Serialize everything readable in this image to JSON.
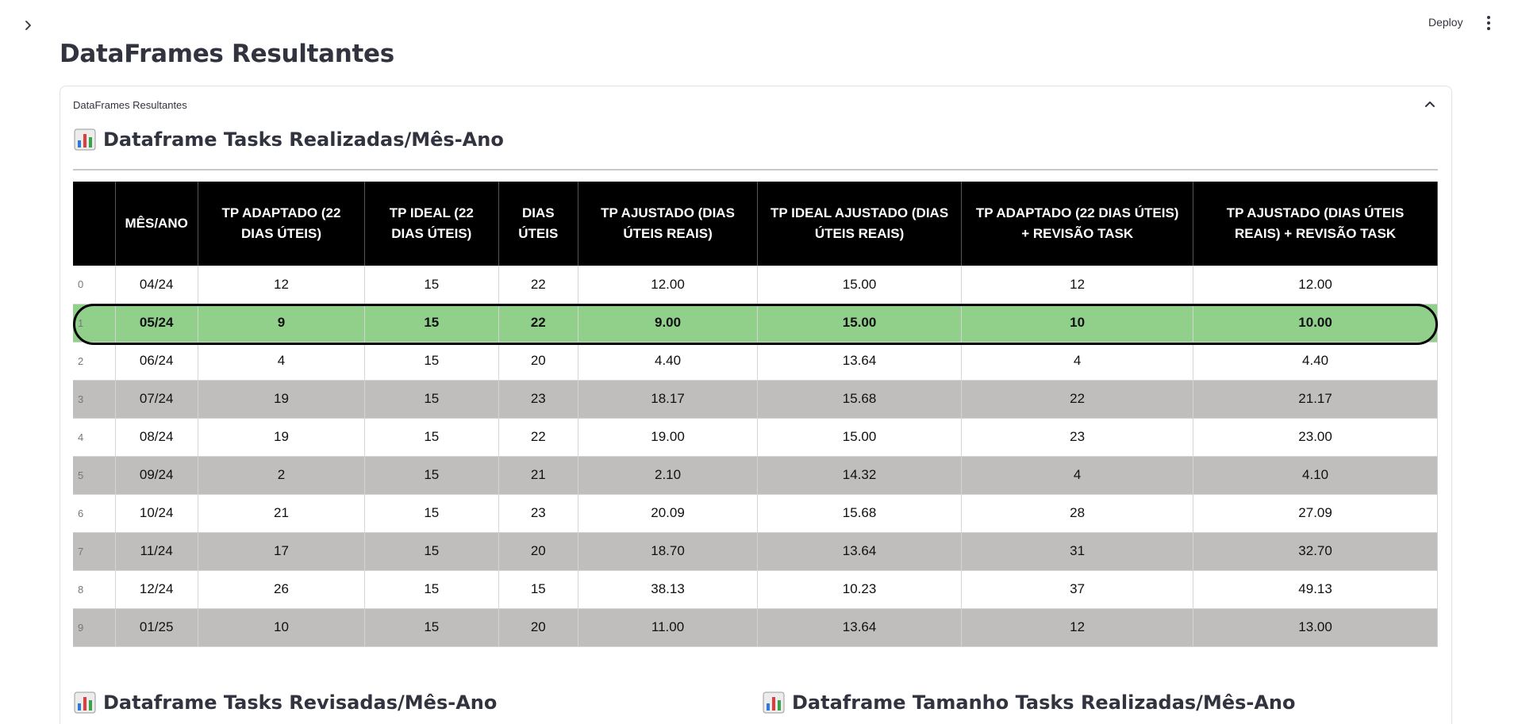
{
  "header": {
    "deploy_label": "Deploy"
  },
  "page": {
    "title": "DataFrames Resultantes"
  },
  "expander": {
    "label": "DataFrames Resultantes"
  },
  "sections": {
    "main_title": "Dataframe Tasks Realizadas/Mês-Ano",
    "left_title": "Dataframe Tasks Revisadas/Mês-Ano",
    "right_title": "Dataframe Tamanho Tasks Realizadas/Mês-Ano"
  },
  "table": {
    "columns": [
      "",
      "MÊS/ANO",
      "TP ADAPTADO (22 DIAS ÚTEIS)",
      "TP IDEAL (22 DIAS ÚTEIS)",
      "DIAS ÚTEIS",
      "TP AJUSTADO (DIAS ÚTEIS REAIS)",
      "TP IDEAL AJUSTADO (DIAS ÚTEIS REAIS)",
      "TP ADAPTADO (22 DIAS ÚTEIS) + REVISÃO TASK",
      "TP AJUSTADO (DIAS ÚTEIS REAIS) + REVISÃO TASK"
    ],
    "rows": [
      [
        "0",
        "04/24",
        "12",
        "15",
        "22",
        "12.00",
        "15.00",
        "12",
        "12.00"
      ],
      [
        "1",
        "05/24",
        "9",
        "15",
        "22",
        "9.00",
        "15.00",
        "10",
        "10.00"
      ],
      [
        "2",
        "06/24",
        "4",
        "15",
        "20",
        "4.40",
        "13.64",
        "4",
        "4.40"
      ],
      [
        "3",
        "07/24",
        "19",
        "15",
        "23",
        "18.17",
        "15.68",
        "22",
        "21.17"
      ],
      [
        "4",
        "08/24",
        "19",
        "15",
        "22",
        "19.00",
        "15.00",
        "23",
        "23.00"
      ],
      [
        "5",
        "09/24",
        "2",
        "15",
        "21",
        "2.10",
        "14.32",
        "4",
        "4.10"
      ],
      [
        "6",
        "10/24",
        "21",
        "15",
        "23",
        "20.09",
        "15.68",
        "28",
        "27.09"
      ],
      [
        "7",
        "11/24",
        "17",
        "15",
        "20",
        "18.70",
        "13.64",
        "31",
        "32.70"
      ],
      [
        "8",
        "12/24",
        "26",
        "15",
        "15",
        "38.13",
        "10.23",
        "37",
        "49.13"
      ],
      [
        "9",
        "01/25",
        "10",
        "15",
        "20",
        "11.00",
        "13.64",
        "12",
        "13.00"
      ]
    ],
    "highlighted_row": 1
  },
  "icons": {
    "sidebar": "chevron-right-icon",
    "menu": "kebab-menu-icon",
    "collapse": "chevron-up-icon",
    "section": "bar-chart-icon"
  }
}
